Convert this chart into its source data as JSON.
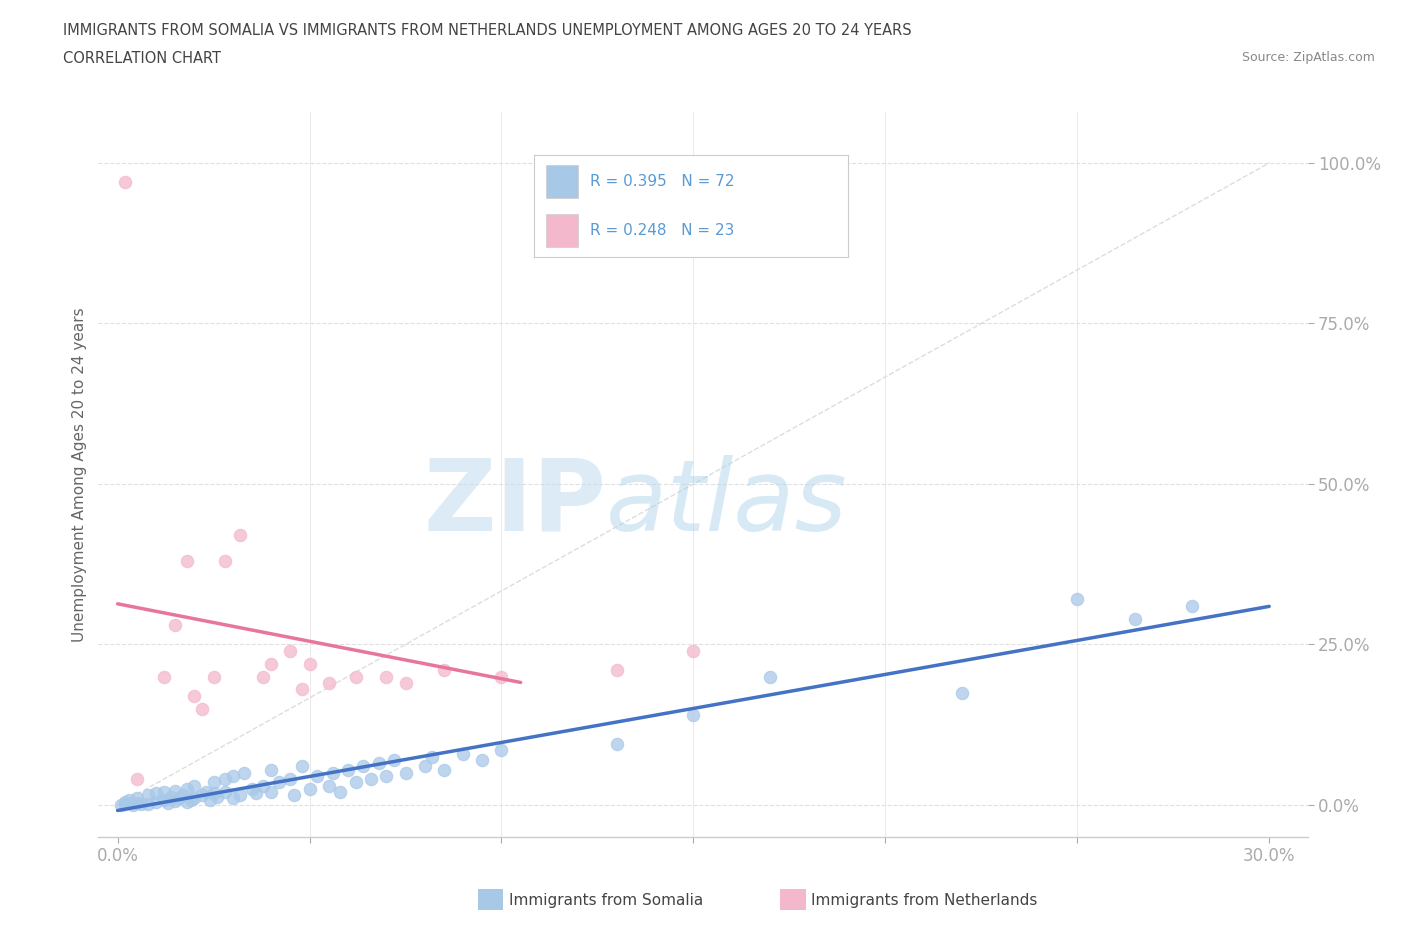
{
  "title_line1": "IMMIGRANTS FROM SOMALIA VS IMMIGRANTS FROM NETHERLANDS UNEMPLOYMENT AMONG AGES 20 TO 24 YEARS",
  "title_line2": "CORRELATION CHART",
  "source": "Source: ZipAtlas.com",
  "ylabel": "Unemployment Among Ages 20 to 24 years",
  "ytick_labels": [
    "0.0%",
    "25.0%",
    "50.0%",
    "75.0%",
    "100.0%"
  ],
  "ytick_values": [
    0.0,
    0.25,
    0.5,
    0.75,
    1.0
  ],
  "xtick_labels": [
    "0.0%",
    "30.0%"
  ],
  "xtick_values": [
    0.0,
    0.3
  ],
  "xlim": [
    -0.005,
    0.31
  ],
  "ylim": [
    -0.05,
    1.08
  ],
  "somalia_color": "#a8c8e8",
  "netherlands_color": "#f4b8cc",
  "somalia_line_color": "#4472c4",
  "netherlands_line_color": "#e8769a",
  "somalia_R": 0.395,
  "somalia_N": 72,
  "netherlands_R": 0.248,
  "netherlands_N": 23,
  "legend_label_somalia": "Immigrants from Somalia",
  "legend_label_netherlands": "Immigrants from Netherlands",
  "watermark_zip": "ZIP",
  "watermark_atlas": "atlas",
  "diagonal_color": "#dddddd",
  "grid_color": "#e0e0e0",
  "tick_color": "#5b9bd5",
  "title_color": "#444444",
  "source_color": "#888888",
  "somalia_scatter_x": [
    0.002,
    0.003,
    0.005,
    0.005,
    0.008,
    0.008,
    0.01,
    0.01,
    0.012,
    0.012,
    0.013,
    0.014,
    0.015,
    0.015,
    0.016,
    0.017,
    0.018,
    0.018,
    0.019,
    0.02,
    0.02,
    0.022,
    0.023,
    0.024,
    0.025,
    0.025,
    0.026,
    0.028,
    0.028,
    0.03,
    0.03,
    0.032,
    0.033,
    0.035,
    0.036,
    0.038,
    0.04,
    0.04,
    0.042,
    0.045,
    0.046,
    0.048,
    0.05,
    0.052,
    0.055,
    0.056,
    0.058,
    0.06,
    0.062,
    0.064,
    0.066,
    0.068,
    0.07,
    0.072,
    0.075,
    0.08,
    0.082,
    0.085,
    0.09,
    0.095,
    0.1,
    0.13,
    0.15,
    0.17,
    0.22,
    0.25,
    0.265,
    0.28,
    0.001,
    0.002,
    0.004,
    0.006
  ],
  "somalia_scatter_y": [
    0.005,
    0.008,
    0.003,
    0.01,
    0.002,
    0.015,
    0.005,
    0.018,
    0.008,
    0.02,
    0.003,
    0.012,
    0.006,
    0.022,
    0.01,
    0.015,
    0.005,
    0.025,
    0.008,
    0.01,
    0.03,
    0.015,
    0.02,
    0.008,
    0.018,
    0.035,
    0.012,
    0.02,
    0.04,
    0.01,
    0.045,
    0.015,
    0.05,
    0.025,
    0.018,
    0.03,
    0.02,
    0.055,
    0.035,
    0.04,
    0.015,
    0.06,
    0.025,
    0.045,
    0.03,
    0.05,
    0.02,
    0.055,
    0.035,
    0.06,
    0.04,
    0.065,
    0.045,
    0.07,
    0.05,
    0.06,
    0.075,
    0.055,
    0.08,
    0.07,
    0.085,
    0.095,
    0.14,
    0.2,
    0.175,
    0.32,
    0.29,
    0.31,
    0.0,
    0.001,
    0.0,
    0.002
  ],
  "netherlands_scatter_x": [
    0.005,
    0.012,
    0.015,
    0.018,
    0.02,
    0.022,
    0.025,
    0.028,
    0.032,
    0.038,
    0.04,
    0.045,
    0.048,
    0.05,
    0.055,
    0.062,
    0.07,
    0.075,
    0.085,
    0.1,
    0.13,
    0.15,
    0.002
  ],
  "netherlands_scatter_y": [
    0.04,
    0.2,
    0.28,
    0.38,
    0.17,
    0.15,
    0.2,
    0.38,
    0.42,
    0.2,
    0.22,
    0.24,
    0.18,
    0.22,
    0.19,
    0.2,
    0.2,
    0.19,
    0.21,
    0.2,
    0.21,
    0.24,
    0.97
  ],
  "neth_line_x": [
    0.0,
    0.105
  ],
  "somalia_line_x": [
    0.0,
    0.3
  ]
}
